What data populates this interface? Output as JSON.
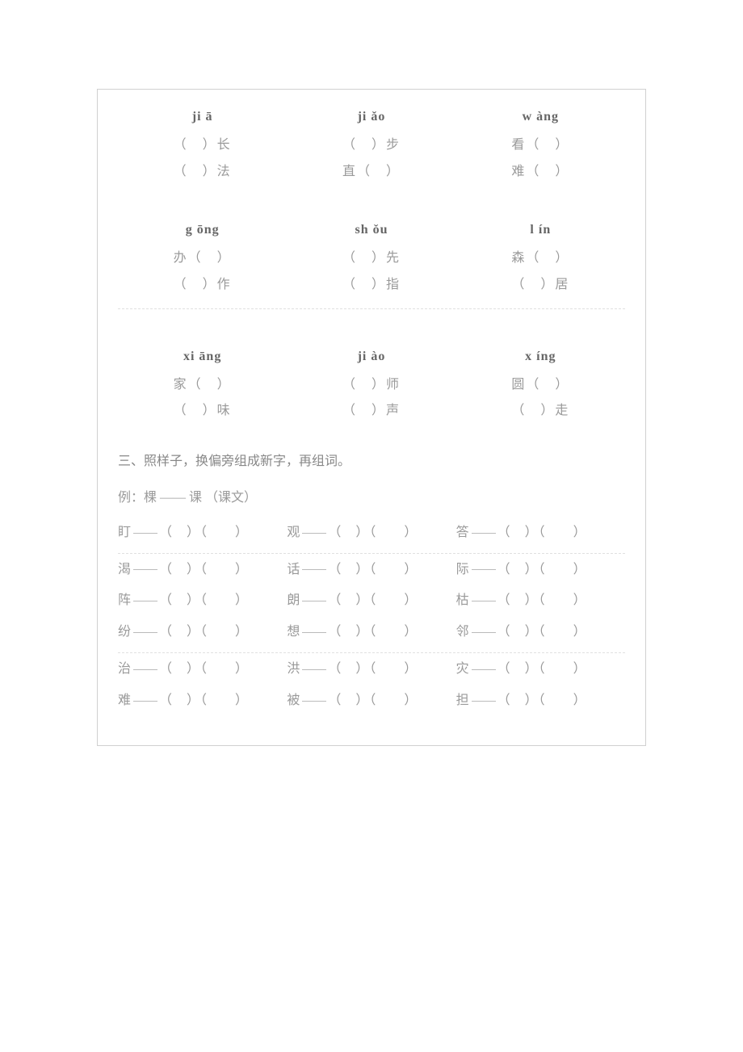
{
  "pinyinGroups": [
    {
      "cols": [
        {
          "pinyin": "ji ā",
          "words": [
            "（　）长",
            "（　）法"
          ]
        },
        {
          "pinyin": "ji ǎo",
          "words": [
            "（　）步",
            "直（　）"
          ]
        },
        {
          "pinyin": "w àng",
          "words": [
            "看（　）",
            "难（　）"
          ]
        }
      ]
    },
    {
      "cols": [
        {
          "pinyin": "g ōng",
          "words": [
            "办（　）",
            "（　）作"
          ]
        },
        {
          "pinyin": "sh ǒu",
          "words": [
            "（　）先",
            "（　）指"
          ]
        },
        {
          "pinyin": "l ín",
          "words": [
            "森（　）",
            "（　）居"
          ]
        }
      ]
    },
    {
      "cols": [
        {
          "pinyin": "xi āng",
          "words": [
            "家（　）",
            "（　）味"
          ]
        },
        {
          "pinyin": "ji ào",
          "words": [
            "（　）师",
            "（　）声"
          ]
        },
        {
          "pinyin": "x íng",
          "words": [
            "圆（　）",
            "（　）走"
          ]
        }
      ]
    }
  ],
  "sectionTitle": "三、照样子，换偏旁组成新字，再组词。",
  "exampleLabel": "例：棵 —— 课 （课文）",
  "blank": "（　）（　　）",
  "exerciseRows": [
    [
      "盯",
      "观",
      "答"
    ],
    [
      "渴",
      "话",
      "际"
    ],
    [
      "阵",
      "朗",
      "枯"
    ],
    [
      "纷",
      "想",
      "邻"
    ],
    [
      "治",
      "洪",
      "灾"
    ],
    [
      "难",
      "被",
      "担"
    ]
  ]
}
